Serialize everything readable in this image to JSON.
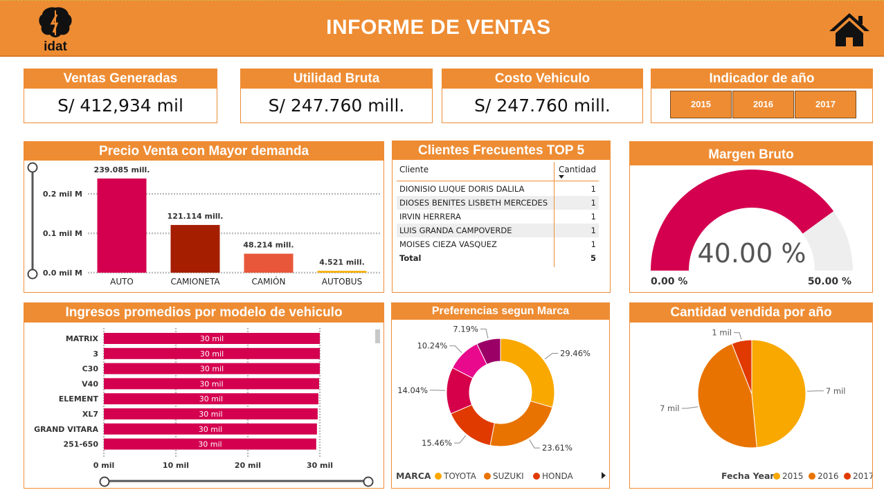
{
  "header": {
    "title": "INFORME DE VENTAS",
    "logo_text": "idat"
  },
  "kpis": [
    {
      "label": "Ventas Generadas",
      "value": "S/ 412,934 mil"
    },
    {
      "label": "Utilidad Bruta",
      "value": "S/ 247.760 mill."
    },
    {
      "label": "Costo Vehiculo",
      "value": "S/ 247.760 mill."
    }
  ],
  "year_indicator": {
    "label": "Indicador de año",
    "years": [
      "2015",
      "2016",
      "2017"
    ]
  },
  "price_demand": {
    "title": "Precio Venta con Mayor demanda",
    "chart_data": {
      "type": "bar",
      "categories": [
        "AUTO",
        "CAMIONETA",
        "CAMIÓN",
        "AUTOBUS"
      ],
      "values": [
        239.085,
        121.114,
        48.214,
        4.521
      ],
      "value_labels": [
        "239.085 mill.",
        "121.114 mill.",
        "48.214 mill.",
        "4.521 mill."
      ],
      "colors": [
        "#d4004f",
        "#a51e00",
        "#e8573a",
        "#f2a900"
      ],
      "ytick_labels": [
        "0.0 mil M",
        "0.1 mil M",
        "0.2 mil M"
      ],
      "yticks": [
        0,
        100,
        200
      ],
      "ylim": [
        0,
        260
      ]
    }
  },
  "top_clients": {
    "title": "Clientes Frecuentes TOP 5",
    "columns": [
      "Cliente",
      "Cantidad"
    ],
    "rows": [
      [
        "DIONISIO LUQUE DORIS DALILA",
        "1"
      ],
      [
        "DIOSES BENITES LISBETH MERCEDES",
        "1"
      ],
      [
        "IRVIN HERRERA",
        "1"
      ],
      [
        "LUIS GRANDA CAMPOVERDE",
        "1"
      ],
      [
        "MOISES CIEZA VASQUEZ",
        "1"
      ]
    ],
    "total_label": "Total",
    "total_value": "5"
  },
  "gross_margin": {
    "title": "Margen Bruto",
    "value": 40.0,
    "max": 50.0,
    "value_label": "40.00 %",
    "min_label": "0.00 %",
    "max_label": "50.00 %",
    "color": "#d4004f"
  },
  "avg_income": {
    "title": "Ingresos promedios por modelo de vehiculo",
    "chart_data": {
      "type": "bar",
      "orientation": "horizontal",
      "categories": [
        "MATRIX",
        "3",
        "C30",
        "V40",
        "ELEMENT",
        "XL7",
        "GRAND VITARA",
        "251-650"
      ],
      "values": [
        30,
        30,
        30,
        29.9,
        29.8,
        29.7,
        29.6,
        29.5
      ],
      "value_labels": [
        "30 mil",
        "30 mil",
        "30 mil",
        "30 mil",
        "30 mil",
        "30 mil",
        "30 mil",
        "30 mil"
      ],
      "xtick_labels": [
        "0 mil",
        "10 mil",
        "20 mil",
        "30 mil"
      ],
      "xticks": [
        0,
        10,
        20,
        30
      ],
      "xlim": [
        0,
        30
      ],
      "color": "#d4004f"
    }
  },
  "brand_pref": {
    "title": "Preferencias segun Marca",
    "chart_data": {
      "type": "pie",
      "donut": true,
      "values": [
        29.46,
        23.61,
        15.46,
        14.04,
        10.24,
        7.19
      ],
      "labels": [
        "29.46%",
        "23.61%",
        "15.46%",
        "14.04%",
        "10.24%",
        "7.19%"
      ],
      "colors": [
        "#f9a800",
        "#e87300",
        "#e03a00",
        "#d6004a",
        "#e8098c",
        "#9b0066"
      ]
    },
    "legend_title": "MARCA",
    "legend": [
      {
        "name": "TOYOTA",
        "color": "#f9a800"
      },
      {
        "name": "SUZUKI",
        "color": "#e87300"
      },
      {
        "name": "HONDA",
        "color": "#e03a00"
      }
    ]
  },
  "qty_year": {
    "title": "Cantidad vendida por año",
    "chart_data": {
      "type": "pie",
      "values": [
        7,
        7,
        1
      ],
      "slice_fractions": [
        0.485,
        0.455,
        0.06
      ],
      "labels": [
        "7 mil",
        "7 mil",
        "1 mil"
      ],
      "colors": [
        "#f9a800",
        "#e87300",
        "#e03a00"
      ]
    },
    "legend_title": "Fecha Year",
    "legend": [
      {
        "name": "2015",
        "color": "#f9a800"
      },
      {
        "name": "2016",
        "color": "#e87300"
      },
      {
        "name": "2017",
        "color": "#e03a00"
      }
    ]
  }
}
